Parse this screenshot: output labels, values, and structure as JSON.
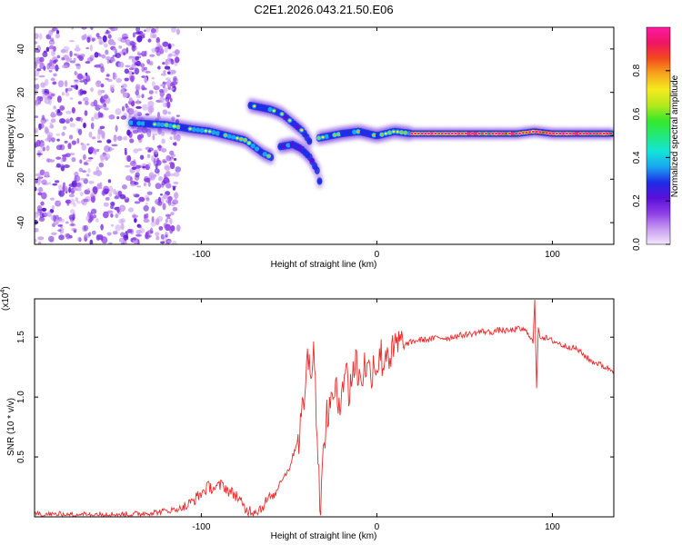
{
  "title": "C2E1.2026.043.21.50.E06",
  "colors": {
    "snr_line": "#ee2b2b",
    "axis": "#000000",
    "colormap": [
      "#f4e6fb",
      "#c79cf0",
      "#8e3fe6",
      "#5a10d8",
      "#1f2de8",
      "#1aa5f0",
      "#12e5d8",
      "#22e87a",
      "#38e82a",
      "#b8e81c",
      "#f5ea1e",
      "#f7a51c",
      "#f24a1c",
      "#f01464",
      "#ff1aa4"
    ]
  },
  "chart_data": [
    {
      "id": "spectrogram",
      "type": "heatmap",
      "title": "C2E1.2026.043.21.50.E06",
      "xlabel": "Height of straight line (km)",
      "ylabel": "Frequency (Hz)",
      "xlim": [
        -195,
        135
      ],
      "ylim": [
        -50,
        50
      ],
      "xticks": [
        -100,
        0,
        100
      ],
      "xtick_labels": [
        "-100",
        "0",
        "100"
      ],
      "yticks": [
        -40,
        -20,
        0,
        20,
        40
      ],
      "ytick_labels": [
        "-40",
        "-20",
        "0",
        "20",
        "40"
      ],
      "colorbar": {
        "label": "Normalized spectral amplitude",
        "range": [
          0,
          1
        ],
        "ticks": [
          0.0,
          0.2,
          0.4,
          0.6,
          0.8
        ],
        "tick_labels": [
          "0.0",
          "0.2",
          "0.4",
          "0.6",
          "0.8"
        ]
      },
      "noise_region": {
        "x": [
          -195,
          -113
        ],
        "y": [
          -50,
          50
        ],
        "amplitude": [
          0.05,
          0.2
        ]
      },
      "features": [
        {
          "name": "main-track",
          "x": [
            -140,
            -120,
            -105,
            -95,
            -85,
            -75,
            -70,
            -65,
            -60
          ],
          "y": [
            6,
            5,
            3,
            2,
            0,
            -2,
            -5,
            -8,
            -10
          ],
          "amplitude": 0.45
        },
        {
          "name": "upper-branch",
          "x": [
            -72,
            -66,
            -60,
            -54,
            -48,
            -42,
            -38
          ],
          "y": [
            14,
            13,
            12,
            10,
            6,
            2,
            -3
          ],
          "amplitude": 0.4
        },
        {
          "name": "lower-branch",
          "x": [
            -55,
            -48,
            -43,
            -38,
            -34,
            -32
          ],
          "y": [
            -5,
            -4,
            -6,
            -10,
            -16,
            -23
          ],
          "amplitude": 0.35
        },
        {
          "name": "mid-track",
          "x": [
            -33,
            -20,
            -10,
            0,
            10,
            20
          ],
          "y": [
            -1,
            1,
            2,
            0,
            2,
            1
          ],
          "amplitude": 0.45
        },
        {
          "name": "steady-tone",
          "x": [
            20,
            40,
            60,
            80,
            90,
            100,
            135
          ],
          "y": [
            1,
            1,
            1,
            1,
            2,
            1,
            1
          ],
          "amplitude": 0.9
        }
      ]
    },
    {
      "id": "snr",
      "type": "line",
      "xlabel": "Height of straight line (km)",
      "ylabel": "SNR (10 * v/v)",
      "y_multiplier": "(x10^4)",
      "y_multiplier_base": "(x10",
      "y_multiplier_exp": "4",
      "y_multiplier_close": ")",
      "xlim": [
        -195,
        135
      ],
      "ylim": [
        0,
        1.82
      ],
      "xticks": [
        -100,
        0,
        100
      ],
      "xtick_labels": [
        "-100",
        "0",
        "100"
      ],
      "yticks": [
        0.5,
        1.0,
        1.5
      ],
      "ytick_labels": [
        "0.5",
        "1.0",
        "1.5"
      ],
      "series": [
        {
          "name": "SNR",
          "x": [
            -195,
            -180,
            -160,
            -140,
            -125,
            -115,
            -108,
            -102,
            -96,
            -92,
            -88,
            -84,
            -80,
            -75,
            -70,
            -66,
            -62,
            -58,
            -55,
            -50,
            -47,
            -44,
            -42,
            -40,
            -38,
            -36,
            -34,
            -33,
            -32,
            -31,
            -30,
            -29,
            -28,
            -27,
            -26,
            -25,
            -24,
            -22,
            -20,
            -18,
            -16,
            -14,
            -12,
            -10,
            -8,
            -6,
            -4,
            -2,
            0,
            2,
            4,
            6,
            8,
            10,
            12,
            15,
            18,
            22,
            26,
            30,
            35,
            40,
            45,
            50,
            55,
            60,
            65,
            70,
            75,
            80,
            84,
            87,
            89,
            90,
            91,
            92,
            93,
            95,
            98,
            102,
            106,
            110,
            114,
            118,
            122,
            126,
            130,
            135
          ],
          "y": [
            0.02,
            0.02,
            0.02,
            0.02,
            0.04,
            0.06,
            0.09,
            0.17,
            0.25,
            0.24,
            0.27,
            0.21,
            0.18,
            0.06,
            0.05,
            0.07,
            0.15,
            0.18,
            0.3,
            0.4,
            0.55,
            0.7,
            0.9,
            1.3,
            1.25,
            1.45,
            0.7,
            0.3,
            0.15,
            0.35,
            0.6,
            0.85,
            0.75,
            0.95,
            1.12,
            0.85,
            1.05,
            0.95,
            1.1,
            1.25,
            1.05,
            1.2,
            1.3,
            1.15,
            1.22,
            1.28,
            1.18,
            1.3,
            1.27,
            1.35,
            1.3,
            1.42,
            1.32,
            1.38,
            1.44,
            1.42,
            1.45,
            1.47,
            1.48,
            1.48,
            1.5,
            1.49,
            1.51,
            1.52,
            1.53,
            1.55,
            1.54,
            1.56,
            1.55,
            1.57,
            1.56,
            1.52,
            1.45,
            1.82,
            1.05,
            1.6,
            1.5,
            1.5,
            1.48,
            1.46,
            1.43,
            1.42,
            1.4,
            1.35,
            1.3,
            1.28,
            1.25,
            1.22
          ]
        }
      ]
    }
  ]
}
